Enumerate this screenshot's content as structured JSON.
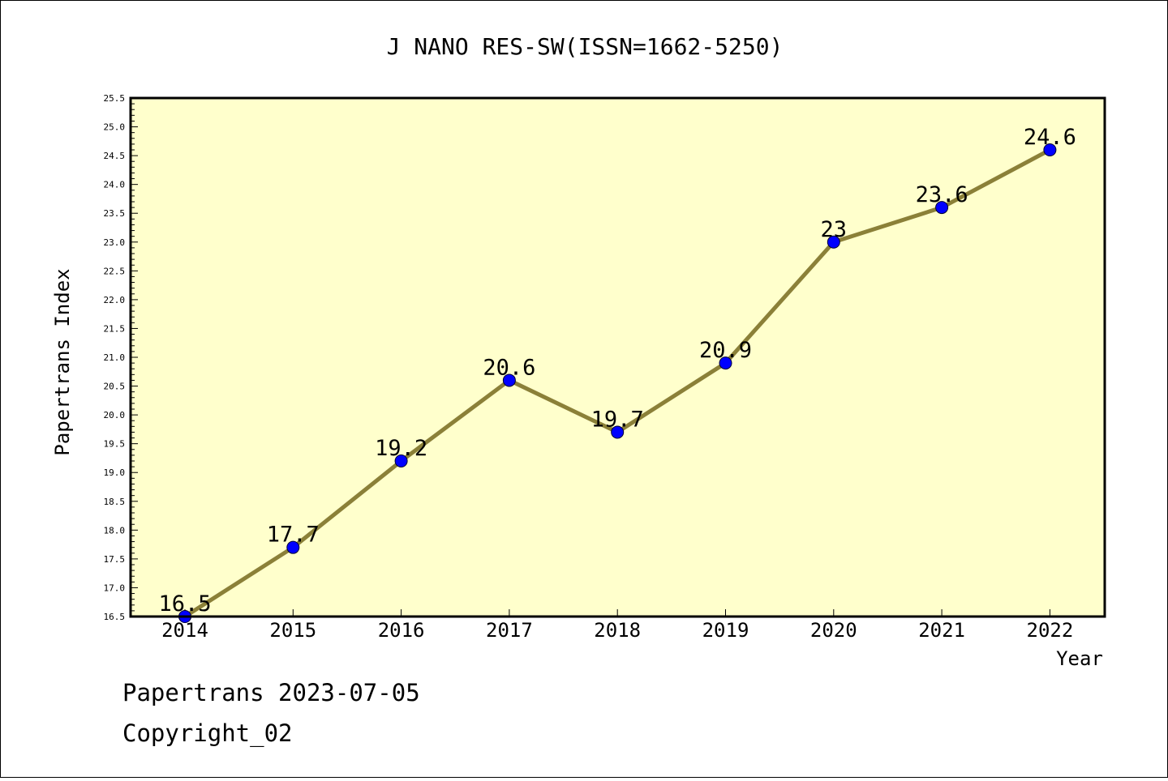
{
  "chart_data": {
    "type": "line",
    "title": "J NANO RES-SW(ISSN=1662-5250)",
    "xlabel": "Year",
    "ylabel": "Papertrans Index",
    "categories": [
      "2014",
      "2015",
      "2016",
      "2017",
      "2018",
      "2019",
      "2020",
      "2021",
      "2022"
    ],
    "series": [
      {
        "values": [
          16.5,
          17.7,
          19.2,
          20.6,
          19.7,
          20.9,
          23,
          23.6,
          24.6
        ],
        "labels": [
          "16.5",
          "17.7",
          "19.2",
          "20.6",
          "19.7",
          "20.9",
          "23",
          "23.6",
          "24.6"
        ]
      }
    ],
    "ylim": [
      16.5,
      25.5
    ],
    "yticks": [
      "16.5",
      "17.0",
      "17.5",
      "18.0",
      "18.5",
      "19.0",
      "19.5",
      "20.0",
      "20.5",
      "21.0",
      "21.5",
      "22.0",
      "22.5",
      "23.0",
      "23.5",
      "24.0",
      "24.5",
      "25.0",
      "25.5"
    ],
    "grid": false,
    "legend": "none",
    "colors": {
      "plot_background": "#ffffcc",
      "line": "#8b8038",
      "marker": "#0000ff",
      "frame": "#000000"
    }
  },
  "footer": {
    "line1": "Papertrans 2023-07-05",
    "line2": "Copyright_02"
  }
}
